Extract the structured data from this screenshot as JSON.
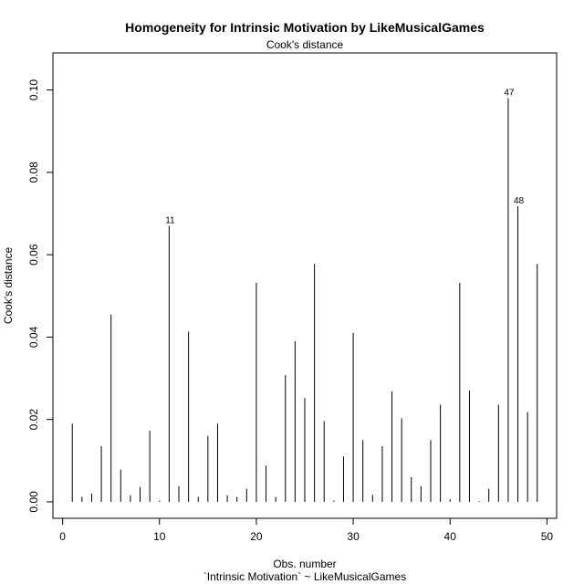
{
  "chart_data": {
    "type": "bar",
    "style": "spike",
    "title": "Homogeneity for Intrinsic Motivation by LikeMusicalGames",
    "subtitle": "Cook's distance",
    "xlabel": "Obs. number",
    "xlabel2": "`Intrinsic Motivation` ~ LikeMusicalGames",
    "ylabel": "Cook's distance",
    "xlim": [
      -1.0,
      51.0
    ],
    "ylim": [
      -0.004,
      0.109
    ],
    "xticks": [
      0,
      10,
      20,
      30,
      40,
      50
    ],
    "yticks": [
      0.0,
      0.02,
      0.04,
      0.06,
      0.08,
      0.1
    ],
    "ytick_labels": [
      "0.00",
      "0.02",
      "0.04",
      "0.06",
      "0.08",
      "0.10"
    ],
    "x": [
      1,
      2,
      3,
      4,
      5,
      6,
      7,
      8,
      9,
      10,
      11,
      12,
      13,
      14,
      15,
      16,
      17,
      18,
      19,
      20,
      21,
      22,
      23,
      24,
      25,
      26,
      27,
      28,
      29,
      30,
      31,
      32,
      33,
      34,
      35,
      36,
      37,
      38,
      39,
      40,
      41,
      42,
      43,
      44,
      45,
      46,
      47,
      48,
      49
    ],
    "values": [
      0.019,
      0.0012,
      0.002,
      0.0135,
      0.0455,
      0.0078,
      0.0016,
      0.0036,
      0.0173,
      0.0003,
      0.067,
      0.0038,
      0.0413,
      0.0012,
      0.016,
      0.019,
      0.0016,
      0.0012,
      0.0032,
      0.0532,
      0.0088,
      0.0012,
      0.0308,
      0.039,
      0.0252,
      0.0578,
      0.0196,
      0.0003,
      0.011,
      0.041,
      0.015,
      0.0017,
      0.0135,
      0.0268,
      0.0203,
      0.006,
      0.0038,
      0.015,
      0.0236,
      0.0006,
      0.0532,
      0.027,
      0.0002,
      0.0032,
      0.0236,
      0.098,
      0.0718,
      0.0218,
      0.0578
    ],
    "annotations": [
      {
        "x": 11,
        "label": "11"
      },
      {
        "x": 46,
        "label": "47"
      },
      {
        "x": 47,
        "label": "48"
      }
    ]
  }
}
